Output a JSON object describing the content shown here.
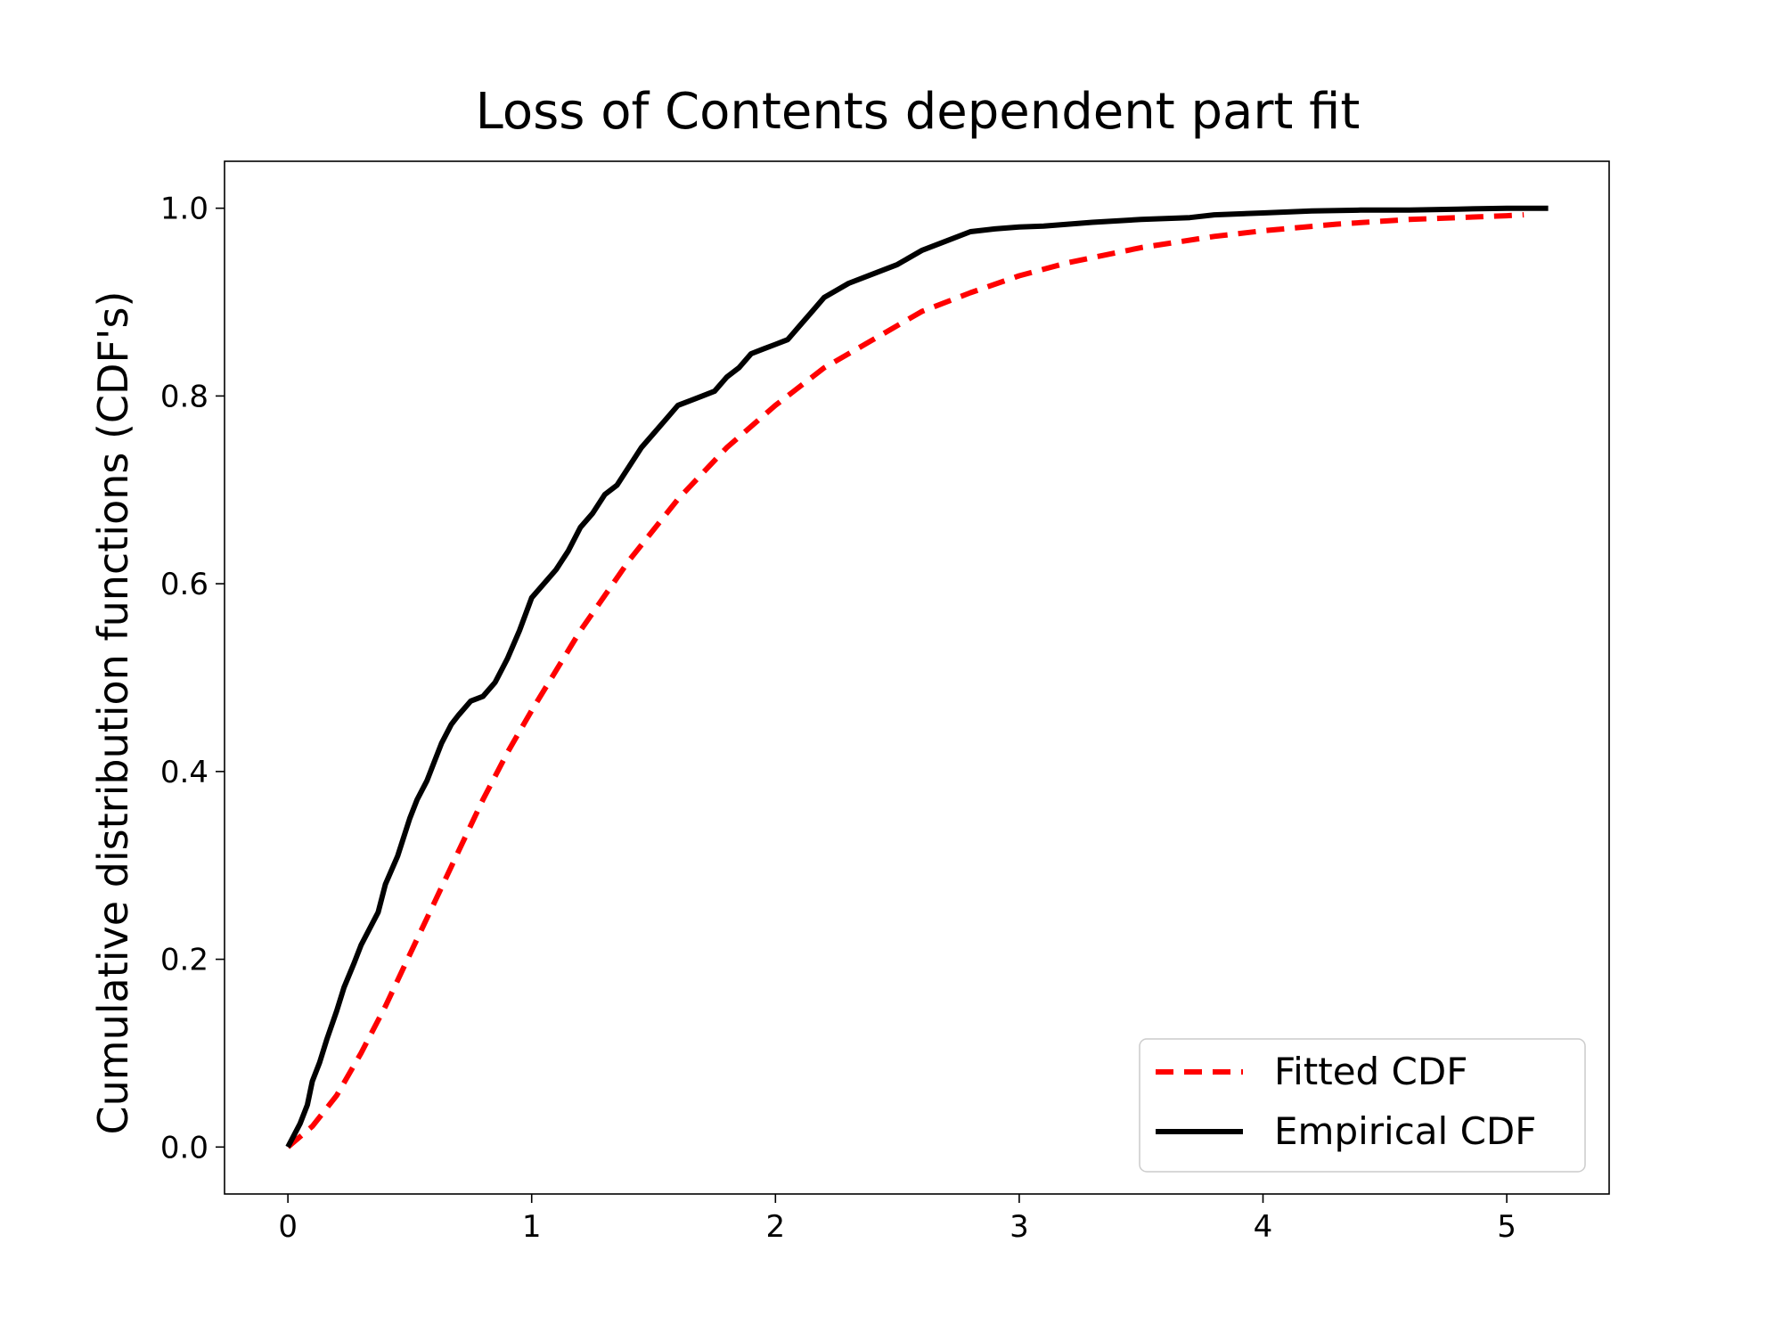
{
  "chart_data": {
    "type": "line",
    "title": "Loss of Contents dependent part fit",
    "xlabel": "",
    "ylabel": "Cumulative distribution functions (CDF's)",
    "xlim": [
      -0.26,
      5.42
    ],
    "ylim": [
      -0.05,
      1.05
    ],
    "xticks": [
      0,
      1,
      2,
      3,
      4,
      5
    ],
    "xtick_labels": [
      "0",
      "1",
      "2",
      "3",
      "4",
      "5"
    ],
    "yticks": [
      0.0,
      0.2,
      0.4,
      0.6,
      0.8,
      1.0
    ],
    "ytick_labels": [
      "0.0",
      "0.2",
      "0.4",
      "0.6",
      "0.8",
      "1.0"
    ],
    "grid": false,
    "legend_position": "bottom-right",
    "series": [
      {
        "name": "Fitted CDF",
        "color": "#ff0000",
        "style": "dashed",
        "x": [
          0.0,
          0.1,
          0.2,
          0.3,
          0.4,
          0.5,
          0.6,
          0.7,
          0.8,
          0.9,
          1.0,
          1.2,
          1.4,
          1.6,
          1.8,
          2.0,
          2.2,
          2.4,
          2.6,
          2.8,
          3.0,
          3.2,
          3.5,
          3.8,
          4.0,
          4.3,
          4.6,
          5.0,
          5.07
        ],
        "y": [
          0.0,
          0.022,
          0.055,
          0.1,
          0.15,
          0.205,
          0.26,
          0.315,
          0.37,
          0.42,
          0.465,
          0.55,
          0.625,
          0.69,
          0.745,
          0.79,
          0.83,
          0.86,
          0.89,
          0.91,
          0.928,
          0.942,
          0.958,
          0.97,
          0.976,
          0.983,
          0.988,
          0.992,
          0.993
        ]
      },
      {
        "name": "Empirical CDF",
        "color": "#000000",
        "style": "solid",
        "x": [
          0.0,
          0.05,
          0.08,
          0.1,
          0.13,
          0.16,
          0.2,
          0.23,
          0.27,
          0.3,
          0.33,
          0.37,
          0.4,
          0.45,
          0.5,
          0.53,
          0.57,
          0.6,
          0.63,
          0.67,
          0.7,
          0.75,
          0.8,
          0.85,
          0.9,
          0.95,
          1.0,
          1.05,
          1.1,
          1.15,
          1.2,
          1.25,
          1.3,
          1.35,
          1.4,
          1.45,
          1.5,
          1.55,
          1.6,
          1.65,
          1.7,
          1.75,
          1.8,
          1.85,
          1.9,
          1.95,
          2.0,
          2.05,
          2.1,
          2.15,
          2.2,
          2.3,
          2.4,
          2.5,
          2.6,
          2.7,
          2.8,
          2.9,
          3.0,
          3.1,
          3.2,
          3.3,
          3.5,
          3.7,
          3.8,
          4.0,
          4.1,
          4.2,
          4.4,
          4.6,
          4.8,
          5.0,
          5.17
        ],
        "y": [
          0.0,
          0.025,
          0.045,
          0.07,
          0.09,
          0.115,
          0.145,
          0.17,
          0.195,
          0.215,
          0.23,
          0.25,
          0.28,
          0.31,
          0.35,
          0.37,
          0.39,
          0.41,
          0.43,
          0.45,
          0.46,
          0.475,
          0.48,
          0.495,
          0.52,
          0.55,
          0.585,
          0.6,
          0.615,
          0.635,
          0.66,
          0.675,
          0.695,
          0.705,
          0.725,
          0.745,
          0.76,
          0.775,
          0.79,
          0.795,
          0.8,
          0.805,
          0.82,
          0.83,
          0.845,
          0.85,
          0.855,
          0.86,
          0.875,
          0.89,
          0.905,
          0.92,
          0.93,
          0.94,
          0.955,
          0.965,
          0.975,
          0.978,
          0.98,
          0.981,
          0.983,
          0.985,
          0.988,
          0.99,
          0.993,
          0.995,
          0.996,
          0.997,
          0.998,
          0.998,
          0.999,
          1.0,
          1.0
        ]
      }
    ]
  }
}
